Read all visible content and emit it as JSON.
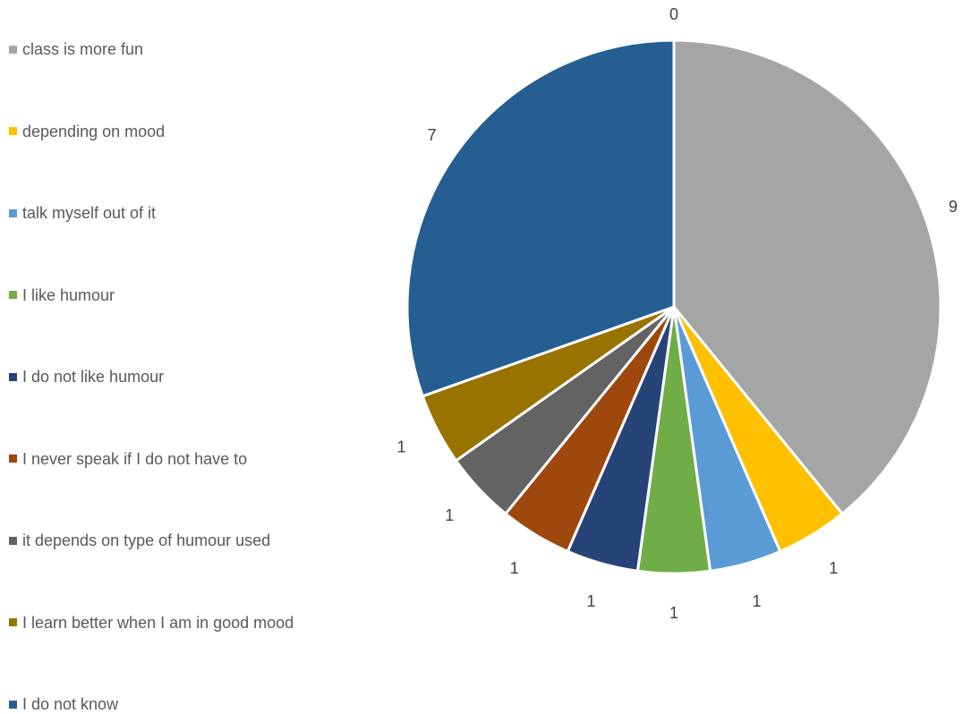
{
  "chart_data": {
    "type": "pie",
    "title": "",
    "legend_position": "left",
    "categories": [
      "class is more fun",
      "depending on mood",
      "talk myself out of it",
      "I like humour",
      "I do not like humour",
      "I never speak if I do not have to",
      "it depends on type of humour used",
      "I learn better when I am in good mood",
      "I do not know"
    ],
    "values": [
      9,
      1,
      1,
      1,
      1,
      1,
      1,
      1,
      7
    ],
    "data_labels": [
      "9",
      "1",
      "1",
      "1",
      "1",
      "1",
      "1",
      "1",
      "7"
    ],
    "extra_label": "0",
    "colors": [
      "#A5A5A5",
      "#FFC000",
      "#5B9BD5",
      "#70AD47",
      "#264478",
      "#9E480E",
      "#636363",
      "#997300",
      "#255E91"
    ]
  }
}
